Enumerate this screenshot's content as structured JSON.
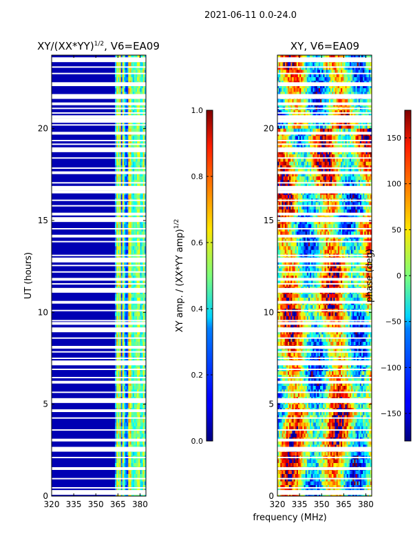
{
  "suptitle": "2021-06-11 0.0-24.0",
  "xlabel_shared": "frequency (MHz)",
  "chart_data": [
    {
      "type": "heatmap",
      "title_main": "XY/(XX*YY)",
      "title_sup": "1/2",
      "title_tail": ", V6=EA09",
      "ylabel": "UT (hours)",
      "xlim": [
        320,
        384
      ],
      "ylim": [
        0,
        24
      ],
      "x_ticks": [
        320,
        335,
        350,
        365,
        380
      ],
      "y_ticks": [
        0,
        5,
        10,
        15,
        20
      ],
      "colormap": "jet",
      "colorbar": {
        "label_main": "XY amp. / (XX*YY amp)",
        "label_sup": "1/2",
        "range": [
          0.0,
          1.0
        ],
        "ticks": [
          "0.0",
          "0.2",
          "0.4",
          "0.6",
          "0.8",
          "1.0"
        ]
      },
      "features": {
        "background_value": 0.05,
        "high_band_mhz": [
          363,
          384
        ],
        "high_band_value_range": [
          0.2,
          0.65
        ]
      }
    },
    {
      "type": "heatmap",
      "title": "XY, V6=EA09",
      "ylabel": "",
      "xlim": [
        320,
        384
      ],
      "ylim": [
        0,
        24
      ],
      "x_ticks": [
        320,
        335,
        350,
        365,
        380
      ],
      "y_ticks": [
        0,
        5,
        10,
        15,
        20
      ],
      "colormap": "jet",
      "colorbar": {
        "label": "phase (deg)",
        "range": [
          -180,
          180
        ],
        "ticks": [
          "−150",
          "−100",
          "−50",
          "0",
          "50",
          "100",
          "150"
        ]
      }
    }
  ],
  "gap_rows_hours": [
    0.2,
    0.45,
    0.95,
    1.5,
    2.1,
    2.55,
    3.05,
    3.6,
    4.25,
    4.65,
    5.2,
    5.65,
    6.2,
    6.45,
    6.9,
    7.25,
    7.5,
    7.85,
    8.1,
    8.6,
    9.05,
    9.4,
    9.55,
    10.1,
    10.55,
    11.2,
    11.55,
    11.8,
    12.2,
    12.55,
    12.85,
    13.1,
    13.85,
    14.15,
    14.55,
    15.05,
    15.35,
    15.8,
    16.1,
    16.55,
    16.75,
    17.05,
    17.6,
    17.85,
    18.4,
    18.85,
    19.15,
    19.35,
    19.75,
    20.2,
    20.45,
    20.65,
    20.85,
    21.1,
    21.35,
    21.75,
    22.35,
    22.45,
    23.0,
    23.35,
    23.75
  ],
  "random_seed": 7
}
